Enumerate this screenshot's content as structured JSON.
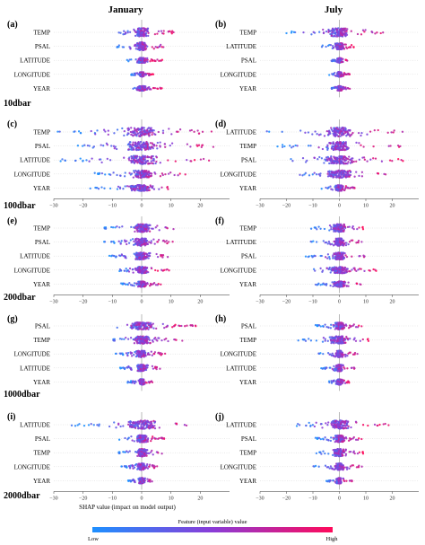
{
  "columns": [
    "January",
    "July"
  ],
  "xlabel": "SHAP value (impact on model output)",
  "colorbar": {
    "label": "Feature (input variable) value",
    "low": "Low",
    "high": "High",
    "low_color": "#1e90ff",
    "high_color": "#ff0a5a"
  },
  "depths": [
    "10dbar",
    "100dbar",
    "200dbar",
    "1000dbar",
    "2000dbar"
  ],
  "chart_data": [
    {
      "type": "scatter",
      "panel": "(a)",
      "month": "January",
      "depth": "10dbar",
      "features": [
        "TEMP",
        "PSAL",
        "LATITUDE",
        "LONGITUDE",
        "YEAR"
      ],
      "xlim": [
        -30,
        30
      ],
      "xticks": [],
      "spread": [
        [
          -11,
          11
        ],
        [
          -9,
          9
        ],
        [
          -5,
          7
        ],
        [
          -4,
          4
        ],
        [
          -3,
          7
        ]
      ],
      "width": [
        0.9,
        0.85,
        0.55,
        0.5,
        0.5
      ]
    },
    {
      "type": "scatter",
      "panel": "(b)",
      "month": "July",
      "depth": "10dbar",
      "features": [
        "TEMP",
        "LATITUDE",
        "PSAL",
        "LONGITUDE",
        "YEAR"
      ],
      "xlim": [
        -30,
        30
      ],
      "xticks": [],
      "spread": [
        [
          -21,
          17
        ],
        [
          -7,
          6
        ],
        [
          -3,
          4
        ],
        [
          -4,
          4
        ],
        [
          -3,
          4
        ]
      ],
      "width": [
        0.9,
        0.7,
        0.5,
        0.5,
        0.5
      ]
    },
    {
      "type": "scatter",
      "panel": "(c)",
      "month": "January",
      "depth": "100dbar",
      "features": [
        "TEMP",
        "PSAL",
        "LATITUDE",
        "LONGITUDE",
        "YEAR"
      ],
      "xlim": [
        -30,
        30
      ],
      "xticks": [
        -30,
        -20,
        -10,
        0,
        10,
        20
      ],
      "spread": [
        [
          -29,
          27
        ],
        [
          -24,
          27
        ],
        [
          -29,
          25
        ],
        [
          -16,
          16
        ],
        [
          -18,
          9
        ]
      ],
      "width": [
        0.95,
        0.9,
        0.9,
        0.8,
        0.65
      ]
    },
    {
      "type": "scatter",
      "panel": "(d)",
      "month": "July",
      "depth": "100dbar",
      "features": [
        "LATITUDE",
        "TEMP",
        "PSAL",
        "LONGITUDE",
        "YEAR"
      ],
      "xlim": [
        -30,
        30
      ],
      "xticks": [
        -30,
        -20,
        -10,
        0,
        10,
        20
      ],
      "spread": [
        [
          -28,
          28
        ],
        [
          -24,
          24
        ],
        [
          -19,
          26
        ],
        [
          -15,
          23
        ],
        [
          -7,
          6
        ]
      ],
      "width": [
        0.95,
        0.9,
        0.85,
        0.8,
        0.6
      ]
    },
    {
      "type": "scatter",
      "panel": "(e)",
      "month": "January",
      "depth": "200dbar",
      "features": [
        "TEMP",
        "PSAL",
        "LATITUDE",
        "LONGITUDE",
        "YEAR"
      ],
      "xlim": [
        -30,
        30
      ],
      "xticks": [
        -30,
        -20,
        -10,
        0,
        10,
        20
      ],
      "spread": [
        [
          -13,
          11
        ],
        [
          -13,
          12
        ],
        [
          -12,
          10
        ],
        [
          -8,
          10
        ],
        [
          -7,
          7
        ]
      ],
      "width": [
        0.85,
        0.8,
        0.75,
        0.7,
        0.6
      ]
    },
    {
      "type": "scatter",
      "panel": "(f)",
      "month": "July",
      "depth": "200dbar",
      "features": [
        "TEMP",
        "LATITUDE",
        "PSAL",
        "LONGITUDE",
        "YEAR"
      ],
      "xlim": [
        -30,
        30
      ],
      "xticks": [
        -30,
        -20,
        -10,
        0,
        10,
        20
      ],
      "spread": [
        [
          -11,
          9
        ],
        [
          -11,
          10
        ],
        [
          -13,
          10
        ],
        [
          -10,
          15
        ],
        [
          -9,
          11
        ]
      ],
      "width": [
        0.85,
        0.8,
        0.75,
        0.7,
        0.6
      ]
    },
    {
      "type": "scatter",
      "panel": "(g)",
      "month": "January",
      "depth": "1000dbar",
      "features": [
        "PSAL",
        "TEMP",
        "LONGITUDE",
        "LATITUDE",
        "YEAR"
      ],
      "xlim": [
        -30,
        30
      ],
      "xticks": [],
      "spread": [
        [
          -9,
          19
        ],
        [
          -10,
          14
        ],
        [
          -9,
          9
        ],
        [
          -8,
          7
        ],
        [
          -5,
          4
        ]
      ],
      "width": [
        0.75,
        0.8,
        0.7,
        0.7,
        0.6
      ]
    },
    {
      "type": "scatter",
      "panel": "(h)",
      "month": "July",
      "depth": "1000dbar",
      "features": [
        "PSAL",
        "TEMP",
        "LONGITUDE",
        "LATITUDE",
        "YEAR"
      ],
      "xlim": [
        -30,
        30
      ],
      "xticks": [],
      "spread": [
        [
          -9,
          9
        ],
        [
          -16,
          11
        ],
        [
          -8,
          8
        ],
        [
          -7,
          6
        ],
        [
          -4,
          4
        ]
      ],
      "width": [
        0.75,
        0.8,
        0.7,
        0.7,
        0.6
      ]
    },
    {
      "type": "scatter",
      "panel": "(i)",
      "month": "January",
      "depth": "2000dbar",
      "features": [
        "LATITUDE",
        "PSAL",
        "TEMP",
        "LONGITUDE",
        "YEAR"
      ],
      "xlim": [
        -30,
        30
      ],
      "xticks": [
        -30,
        -20,
        -10,
        0,
        10,
        20
      ],
      "spread": [
        [
          -24,
          22
        ],
        [
          -8,
          8
        ],
        [
          -8,
          7
        ],
        [
          -7,
          6
        ],
        [
          -5,
          4
        ]
      ],
      "width": [
        0.9,
        0.75,
        0.8,
        0.7,
        0.6
      ]
    },
    {
      "type": "scatter",
      "panel": "(j)",
      "month": "July",
      "depth": "2000dbar",
      "features": [
        "LATITUDE",
        "PSAL",
        "TEMP",
        "LONGITUDE",
        "YEAR"
      ],
      "xlim": [
        -30,
        30
      ],
      "xticks": [
        -30,
        -20,
        -10,
        0,
        10,
        20
      ],
      "spread": [
        [
          -17,
          20
        ],
        [
          -9,
          9
        ],
        [
          -9,
          9
        ],
        [
          -10,
          10
        ],
        [
          -5,
          5
        ]
      ],
      "width": [
        0.9,
        0.75,
        0.8,
        0.7,
        0.6
      ]
    }
  ]
}
